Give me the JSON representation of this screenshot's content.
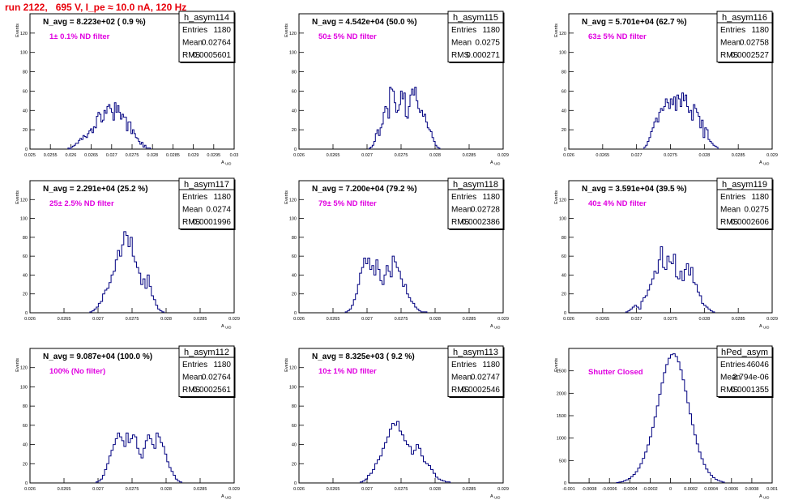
{
  "title": "run 2122,   695 V, I_pe ≈ 10.0 nA, 120 Hz",
  "colors": {
    "title": "#e8000b",
    "annotation": "#e000e0",
    "histogram": "#000080",
    "frame": "#000000"
  },
  "chart_data": [
    {
      "type": "bar",
      "title": "h_asym114",
      "header": "N_avg = 8.223e+02 ( 0.9 %)",
      "filter_label": "1± 0.1% ND filter",
      "xlabel": "A_UID",
      "ylabel": "Events",
      "xlim": [
        0.025,
        0.03
      ],
      "ylim": [
        0,
        140
      ],
      "xticks": [
        0.025,
        0.0255,
        0.026,
        0.0265,
        0.027,
        0.0275,
        0.028,
        0.0285,
        0.029,
        0.0295,
        0.03
      ],
      "yticks": [
        0,
        20,
        40,
        60,
        80,
        100,
        120
      ],
      "stats": [
        [
          "Entries",
          "1180"
        ],
        [
          "Mean",
          "0.02764"
        ],
        [
          "RMS",
          "0.0005601"
        ]
      ],
      "bin_edges": [
        0.02593,
        0.02795
      ],
      "values": [
        1,
        0,
        2,
        3,
        4,
        6,
        6,
        9,
        11,
        10,
        14,
        13,
        12,
        16,
        19,
        21,
        17,
        23,
        22,
        34,
        38,
        36,
        28,
        30,
        40,
        37,
        44,
        46,
        42,
        38,
        30,
        48,
        38,
        45,
        38,
        31,
        36,
        33,
        33,
        19,
        28,
        28,
        16,
        20,
        16,
        12,
        11,
        8,
        5,
        7,
        2,
        4,
        1,
        1,
        1
      ]
    },
    {
      "type": "bar",
      "title": "h_asym115",
      "header": "N_avg = 4.542e+04 (50.0 %)",
      "filter_label": "50± 5% ND filter",
      "xlabel": "A_UID",
      "ylabel": "Events",
      "xlim": [
        0.026,
        0.029
      ],
      "ylim": [
        0,
        140
      ],
      "xticks": [
        0.026,
        0.0265,
        0.027,
        0.0275,
        0.028,
        0.0285,
        0.029
      ],
      "yticks": [
        0,
        20,
        40,
        60,
        80,
        100,
        120
      ],
      "stats": [
        [
          "Entries",
          "1180"
        ],
        [
          "Mean",
          "0.0275"
        ],
        [
          "RMS",
          "0.000271"
        ]
      ],
      "bin_edges": [
        0.02703,
        0.02807
      ],
      "values": [
        1,
        2,
        4,
        8,
        16,
        20,
        14,
        22,
        26,
        38,
        44,
        42,
        32,
        64,
        62,
        60,
        48,
        38,
        40,
        46,
        60,
        52,
        58,
        34,
        32,
        44,
        56,
        62,
        56,
        64,
        50,
        42,
        38,
        40,
        34,
        36,
        28,
        22,
        20,
        18,
        12,
        8,
        4,
        2,
        1
      ]
    },
    {
      "type": "bar",
      "title": "h_asym116",
      "header": "N_avg = 5.701e+04 (62.7 %)",
      "filter_label": "63± 5% ND filter",
      "xlabel": "A_UID",
      "ylabel": "Events",
      "xlim": [
        0.026,
        0.029
      ],
      "ylim": [
        0,
        140
      ],
      "xticks": [
        0.026,
        0.0265,
        0.027,
        0.0275,
        0.028,
        0.0285,
        0.029
      ],
      "yticks": [
        0,
        20,
        40,
        60,
        80,
        100,
        120
      ],
      "stats": [
        [
          "Entries",
          "1180"
        ],
        [
          "Mean",
          "0.02758"
        ],
        [
          "RMS",
          "0.0002527"
        ]
      ],
      "bin_edges": [
        0.02711,
        0.0282
      ],
      "values": [
        2,
        4,
        8,
        12,
        18,
        22,
        28,
        32,
        28,
        38,
        42,
        40,
        44,
        52,
        48,
        42,
        52,
        46,
        54,
        40,
        56,
        52,
        44,
        58,
        50,
        56,
        44,
        38,
        40,
        30,
        46,
        42,
        38,
        34,
        22,
        30,
        12,
        22,
        20,
        10,
        8,
        6,
        4,
        3,
        2
      ]
    },
    {
      "type": "bar",
      "title": "h_asym117",
      "header": "N_avg = 2.291e+04 (25.2 %)",
      "filter_label": "25± 2.5% ND filter",
      "xlabel": "A_UID",
      "ylabel": "Events",
      "xlim": [
        0.026,
        0.029
      ],
      "ylim": [
        0,
        140
      ],
      "xticks": [
        0.026,
        0.0265,
        0.027,
        0.0275,
        0.028,
        0.0285,
        0.029
      ],
      "yticks": [
        0,
        20,
        40,
        60,
        80,
        100,
        120
      ],
      "stats": [
        [
          "Entries",
          "1180"
        ],
        [
          "Mean",
          "0.0274"
        ],
        [
          "RMS",
          "0.0001996"
        ]
      ],
      "bin_edges": [
        0.02688,
        0.02797
      ],
      "values": [
        1,
        2,
        4,
        6,
        10,
        12,
        20,
        24,
        26,
        32,
        40,
        44,
        56,
        66,
        60,
        72,
        86,
        82,
        70,
        80,
        60,
        54,
        48,
        42,
        30,
        36,
        26,
        40,
        28,
        18,
        14,
        8,
        4,
        2,
        1
      ]
    },
    {
      "type": "bar",
      "title": "h_asym118",
      "header": "N_avg = 7.200e+04 (79.2 %)",
      "filter_label": "79± 5% ND filter",
      "xlabel": "A_UID",
      "ylabel": "Events",
      "xlim": [
        0.026,
        0.029
      ],
      "ylim": [
        0,
        140
      ],
      "xticks": [
        0.026,
        0.0265,
        0.027,
        0.0275,
        0.028,
        0.0285,
        0.029
      ],
      "yticks": [
        0,
        20,
        40,
        60,
        80,
        100,
        120
      ],
      "stats": [
        [
          "Entries",
          "1180"
        ],
        [
          "Mean",
          "0.02728"
        ],
        [
          "RMS",
          "0.0002386"
        ]
      ],
      "bin_edges": [
        0.02668,
        0.02788
      ],
      "values": [
        1,
        2,
        4,
        8,
        14,
        20,
        30,
        42,
        48,
        58,
        52,
        58,
        46,
        50,
        40,
        56,
        46,
        34,
        30,
        40,
        50,
        44,
        38,
        60,
        54,
        48,
        44,
        36,
        28,
        30,
        20,
        16,
        12,
        10,
        6,
        4,
        2,
        1,
        1,
        1
      ]
    },
    {
      "type": "bar",
      "title": "h_asym119",
      "header": "N_avg = 3.591e+04 (39.5 %)",
      "filter_label": "40± 4% ND filter",
      "xlabel": "A_UID",
      "ylabel": "Events",
      "xlim": [
        0.026,
        0.029
      ],
      "ylim": [
        0,
        140
      ],
      "xticks": [
        0.026,
        0.0265,
        0.027,
        0.0275,
        0.028,
        0.0285,
        0.029
      ],
      "yticks": [
        0,
        20,
        40,
        60,
        80,
        100,
        120
      ],
      "stats": [
        [
          "Entries",
          "1180"
        ],
        [
          "Mean",
          "0.0275"
        ],
        [
          "RMS",
          "0.0002606"
        ]
      ],
      "bin_edges": [
        0.02684,
        0.02815
      ],
      "values": [
        1,
        2,
        4,
        6,
        8,
        6,
        4,
        12,
        16,
        18,
        24,
        30,
        36,
        44,
        42,
        56,
        70,
        48,
        46,
        60,
        54,
        52,
        62,
        38,
        36,
        44,
        34,
        46,
        52,
        40,
        48,
        32,
        30,
        22,
        18,
        10,
        8,
        6,
        4,
        2,
        1
      ]
    },
    {
      "type": "bar",
      "title": "h_asym112",
      "header": "N_avg = 9.087e+04 (100.0 %)",
      "filter_label": "100% (No filter)",
      "xlabel": "A_UID",
      "ylabel": "Events",
      "xlim": [
        0.026,
        0.029
      ],
      "ylim": [
        0,
        140
      ],
      "xticks": [
        0.026,
        0.0265,
        0.027,
        0.0275,
        0.028,
        0.0285,
        0.029
      ],
      "yticks": [
        0,
        20,
        40,
        60,
        80,
        100,
        120
      ],
      "stats": [
        [
          "Entries",
          "1180"
        ],
        [
          "Mean",
          "0.02764"
        ],
        [
          "RMS",
          "0.0002561"
        ]
      ],
      "bin_edges": [
        0.02697,
        0.02823
      ],
      "values": [
        1,
        2,
        4,
        8,
        14,
        20,
        28,
        34,
        40,
        46,
        52,
        48,
        44,
        38,
        52,
        42,
        46,
        50,
        48,
        36,
        30,
        26,
        36,
        44,
        50,
        46,
        40,
        36,
        52,
        48,
        42,
        38,
        30,
        22,
        16,
        12,
        8,
        4,
        2,
        1
      ]
    },
    {
      "type": "bar",
      "title": "h_asym113",
      "header": "N_avg = 8.325e+03 ( 9.2 %)",
      "filter_label": "10± 1% ND filter",
      "xlabel": "A_UID",
      "ylabel": "Events",
      "xlim": [
        0.026,
        0.029
      ],
      "ylim": [
        0,
        140
      ],
      "xticks": [
        0.026,
        0.0265,
        0.027,
        0.0275,
        0.028,
        0.0285,
        0.029
      ],
      "yticks": [
        0,
        20,
        40,
        60,
        80,
        100,
        120
      ],
      "stats": [
        [
          "Entries",
          "1180"
        ],
        [
          "Mean",
          "0.02747"
        ],
        [
          "RMS",
          "0.0002546"
        ]
      ],
      "bin_edges": [
        0.0269,
        0.02822
      ],
      "values": [
        1,
        2,
        4,
        8,
        10,
        14,
        20,
        24,
        28,
        36,
        42,
        48,
        56,
        62,
        60,
        64,
        54,
        50,
        44,
        40,
        38,
        30,
        34,
        40,
        36,
        28,
        22,
        20,
        18,
        14,
        10,
        6,
        4,
        3,
        2,
        1,
        1
      ]
    },
    {
      "type": "bar",
      "title": "hPed_asym",
      "header": "",
      "filter_label": "Shutter Closed",
      "xlabel": "A_UID",
      "ylabel": "Events",
      "xlim": [
        -0.001,
        0.001
      ],
      "ylim": [
        0,
        3000
      ],
      "xticks": [
        -0.001,
        -0.0008,
        -0.0006,
        -0.0004,
        -0.0002,
        0,
        0.0002,
        0.0004,
        0.0006,
        0.0008,
        0.001
      ],
      "yticks": [
        0,
        500,
        1000,
        1500,
        2000,
        2500
      ],
      "stats": [
        [
          "Entries",
          "46046"
        ],
        [
          "Mean",
          "2.794e-06"
        ],
        [
          "RMS",
          "0.0001355"
        ]
      ],
      "bin_edges": [
        -0.00053,
        0.00053
      ],
      "values": [
        10,
        20,
        30,
        50,
        70,
        100,
        140,
        190,
        250,
        330,
        430,
        550,
        690,
        850,
        1030,
        1240,
        1470,
        1720,
        1980,
        2230,
        2460,
        2640,
        2780,
        2860,
        2880,
        2820,
        2700,
        2520,
        2300,
        2050,
        1790,
        1540,
        1300,
        1070,
        870,
        690,
        540,
        410,
        310,
        230,
        170,
        120,
        80,
        55,
        35,
        20
      ]
    }
  ]
}
